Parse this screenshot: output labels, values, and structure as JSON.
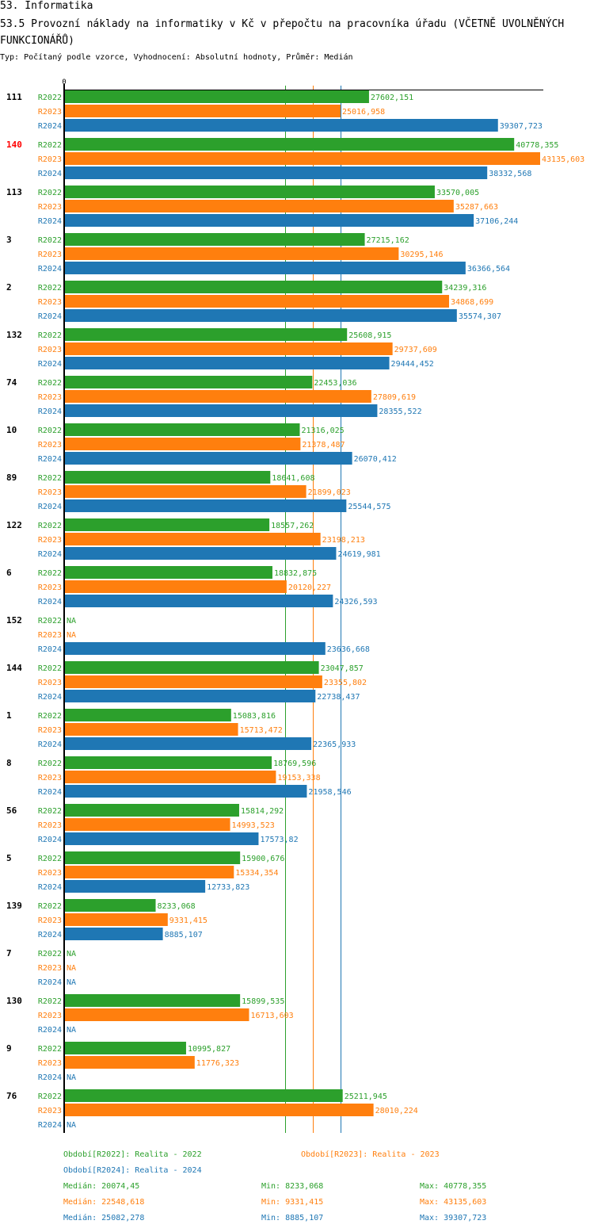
{
  "header": {
    "section": "53. Informatika",
    "title": "53.5 Provozní náklady na informatiky v Kč v přepočtu na pracovníka úřadu (VČETNĚ UVOLNĚNÝCH FUNKCIONÁŘŮ)",
    "subtitle": "Typ: Počítaný podle vzorce, Vyhodnocení: Absolutní hodnoty, Průměr: Medián"
  },
  "colors": {
    "R2022": "#2ca02c",
    "R2023": "#ff7f0e",
    "R2024": "#1f77b4",
    "highlight": "#ff0000",
    "axis": "#000000"
  },
  "chart_data": {
    "type": "bar",
    "orientation": "horizontal",
    "title": "53.5 Provozní náklady na informatiky v Kč v přepočtu na pracovníka úřadu (VČETNĚ UVOLNĚNÝCH FUNKCIONÁŘŮ)",
    "x_tick_labels": [
      "0"
    ],
    "xlim": [
      0,
      43135.603
    ],
    "grid": false,
    "highlighted_category": "140",
    "series_names": [
      "R2022",
      "R2023",
      "R2024"
    ],
    "categories": [
      "111",
      "140",
      "113",
      "3",
      "2",
      "132",
      "74",
      "10",
      "89",
      "122",
      "6",
      "152",
      "144",
      "1",
      "8",
      "56",
      "5",
      "139",
      "7",
      "130",
      "9",
      "76"
    ],
    "series": [
      {
        "name": "R2022",
        "values": [
          27602.151,
          40778.355,
          33570.005,
          27215.162,
          34239.316,
          25608.915,
          22453.036,
          21316.025,
          18641.608,
          18557.262,
          18832.875,
          null,
          23047.857,
          15083.816,
          18769.596,
          15814.292,
          15900.676,
          8233.068,
          null,
          15899.535,
          10995.827,
          25211.945
        ],
        "labels": [
          "27602,151",
          "40778,355",
          "33570,005",
          "27215,162",
          "34239,316",
          "25608,915",
          "22453,036",
          "21316,025",
          "18641,608",
          "18557,262",
          "18832,875",
          "NA",
          "23047,857",
          "15083,816",
          "18769,596",
          "15814,292",
          "15900,676",
          "8233,068",
          "NA",
          "15899,535",
          "10995,827",
          "25211,945"
        ]
      },
      {
        "name": "R2023",
        "values": [
          25016.958,
          43135.603,
          35287.663,
          30295.146,
          34868.699,
          29737.609,
          27809.619,
          21378.487,
          21899.023,
          23198.213,
          20120.227,
          null,
          23355.802,
          15713.472,
          19153.338,
          14993.523,
          15334.354,
          9331.415,
          null,
          16713.603,
          11776.323,
          28010.224
        ],
        "labels": [
          "25016,958",
          "43135,603",
          "35287,663",
          "30295,146",
          "34868,699",
          "29737,609",
          "27809,619",
          "21378,487",
          "21899,023",
          "23198,213",
          "20120,227",
          "NA",
          "23355,802",
          "15713,472",
          "19153,338",
          "14993,523",
          "15334,354",
          "9331,415",
          "NA",
          "16713,603",
          "11776,323",
          "28010,224"
        ]
      },
      {
        "name": "R2024",
        "values": [
          39307.723,
          38332.568,
          37106.244,
          36366.564,
          35574.307,
          29444.452,
          28355.522,
          26070.412,
          25544.575,
          24619.981,
          24326.593,
          23636.668,
          22738.437,
          22365.933,
          21958.546,
          17573.82,
          12733.823,
          8885.107,
          null,
          null,
          null,
          null
        ],
        "labels": [
          "39307,723",
          "38332,568",
          "37106,244",
          "36366,564",
          "35574,307",
          "29444,452",
          "28355,522",
          "26070,412",
          "25544,575",
          "24619,981",
          "24326,593",
          "23636,668",
          "22738,437",
          "22365,933",
          "21958,546",
          "17573,82",
          "12733,823",
          "8885,107",
          "NA",
          "NA",
          "NA",
          "NA"
        ]
      }
    ],
    "medians": {
      "R2022": 20074.45,
      "R2023": 22548.618,
      "R2024": 25082.278
    }
  },
  "legend": {
    "periods": [
      {
        "series": "R2022",
        "text": "Období[R2022]: Realita - 2022"
      },
      {
        "series": "R2023",
        "text": "Období[R2023]: Realita - 2023"
      },
      {
        "series": "R2024",
        "text": "Období[R2024]: Realita - 2024"
      }
    ],
    "stats": [
      {
        "series": "R2022",
        "median": "Medián: 20074,45",
        "min": "Min: 8233,068",
        "max": "Max: 40778,355"
      },
      {
        "series": "R2023",
        "median": "Medián: 22548,618",
        "min": "Min: 9331,415",
        "max": "Max: 43135,603"
      },
      {
        "series": "R2024",
        "median": "Medián: 25082,278",
        "min": "Min: 8885,107",
        "max": "Max: 39307,723"
      }
    ]
  }
}
